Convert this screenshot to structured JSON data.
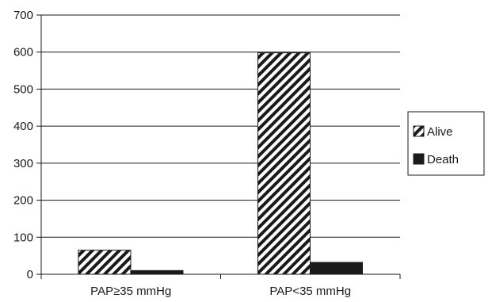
{
  "chart_data": {
    "type": "bar",
    "categories": [
      "PAP≥35 mmHg",
      "PAP<35 mmHg"
    ],
    "series": [
      {
        "name": "Alive",
        "values": [
          65,
          598
        ],
        "pattern": "diagonal-hatch"
      },
      {
        "name": "Death",
        "values": [
          10,
          32
        ],
        "pattern": "solid"
      }
    ],
    "ylim": [
      0,
      700
    ],
    "yticks": [
      0,
      100,
      200,
      300,
      400,
      500,
      600,
      700
    ],
    "grid": true,
    "legend_position": "right",
    "colors": {
      "bar_fill": "#1a1a1a",
      "grid": "#1a1a1a",
      "background": "#ffffff"
    }
  }
}
